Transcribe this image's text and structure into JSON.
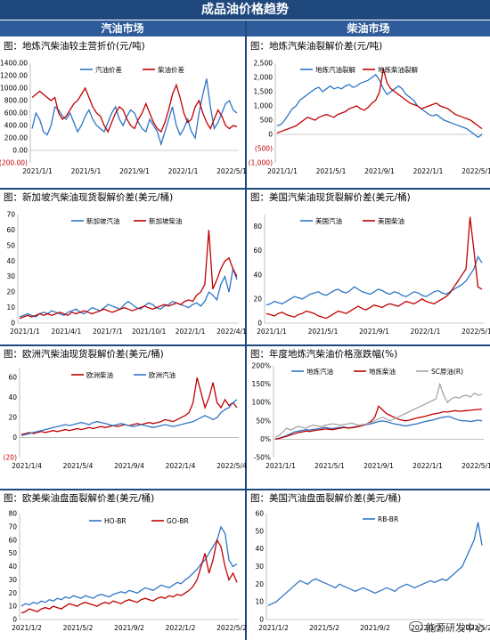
{
  "header": {
    "title": "成品油价格趋势",
    "left_section": "汽油市场",
    "right_section": "柴油市场"
  },
  "watermark": "能源研发中心",
  "chart_data": [
    {
      "type": "line",
      "title": "图：地炼汽柴油较主营折价(元/吨)",
      "yticks": [
        1400,
        1200,
        1000,
        800,
        600,
        400,
        200,
        0,
        -200
      ],
      "ytick_labels": [
        "1400.00",
        "1200.00",
        "1000.00",
        "800.00",
        "600.00",
        "400.00",
        "200.00",
        "0.00",
        "(200.00)"
      ],
      "ylim": [
        -200,
        1400
      ],
      "xticks": [
        "2021/1/1",
        "2021/5/1",
        "2021/9/1",
        "2022/1/1",
        "2022/5/1"
      ],
      "series": [
        {
          "name": "汽油价差",
          "color": "#2e75c6",
          "values": [
            350,
            600,
            500,
            300,
            250,
            400,
            700,
            650,
            550,
            500,
            600,
            450,
            300,
            400,
            550,
            650,
            500,
            400,
            350,
            300,
            450,
            600,
            700,
            500,
            400,
            550,
            650,
            600,
            450,
            350,
            300,
            500,
            400,
            300,
            100,
            300,
            500,
            700,
            400,
            250,
            350,
            500,
            300,
            200,
            600,
            900,
            1150,
            700,
            350,
            450,
            600,
            750,
            800,
            650,
            600
          ]
        },
        {
          "name": "柴油价差",
          "color": "#c00000",
          "values": [
            850,
            900,
            950,
            900,
            850,
            800,
            850,
            600,
            500,
            550,
            650,
            750,
            800,
            900,
            1000,
            850,
            700,
            600,
            550,
            400,
            300,
            450,
            600,
            700,
            650,
            500,
            400,
            350,
            500,
            600,
            750,
            600,
            450,
            350,
            300,
            450,
            650,
            900,
            1050,
            850,
            600,
            450,
            500,
            700,
            800,
            600,
            450,
            350,
            500,
            650,
            550,
            400,
            350,
            400,
            380
          ]
        }
      ]
    },
    {
      "type": "line",
      "title": "图：地炼汽柴油裂解价差(元/吨)",
      "yticks": [
        2500,
        2000,
        1500,
        1000,
        500,
        0,
        -500,
        -1000
      ],
      "ytick_labels": [
        "2,500",
        "2,000",
        "1,500",
        "1,000",
        "500",
        "0",
        "(500)",
        "(1,000)"
      ],
      "ylim": [
        -1000,
        2500
      ],
      "xticks": [
        "2021/1/1",
        "2021/5/1",
        "2021/9/1",
        "2022/1/1",
        "2022/5/1"
      ],
      "series": [
        {
          "name": "地炼汽油裂解",
          "color": "#2e75c6",
          "values": [
            300,
            350,
            500,
            700,
            900,
            1000,
            1200,
            1300,
            1400,
            1500,
            1600,
            1650,
            1500,
            1600,
            1700,
            1600,
            1650,
            1600,
            1700,
            1750,
            1650,
            1700,
            1800,
            1850,
            1900,
            2000,
            2100,
            1900,
            1600,
            1400,
            1500,
            1600,
            1700,
            1600,
            1400,
            1300,
            1200,
            1000,
            900,
            800,
            700,
            650,
            700,
            600,
            500,
            450,
            400,
            350,
            300,
            250,
            200,
            100,
            0,
            -100,
            0
          ]
        },
        {
          "name": "地炼柴油裂解",
          "color": "#c00000",
          "values": [
            50,
            100,
            150,
            200,
            250,
            300,
            400,
            500,
            600,
            550,
            500,
            600,
            650,
            700,
            650,
            600,
            700,
            750,
            800,
            900,
            950,
            1000,
            900,
            850,
            950,
            1100,
            1200,
            1500,
            2300,
            1800,
            1600,
            1500,
            1400,
            1300,
            1200,
            1100,
            1050,
            1000,
            900,
            950,
            1000,
            1050,
            1100,
            1000,
            950,
            900,
            800,
            700,
            650,
            600,
            550,
            500,
            400,
            300,
            200
          ]
        }
      ]
    },
    {
      "type": "line",
      "title": "图：新加坡汽柴油现货裂解价差(美元/桶)",
      "yticks": [
        70,
        60,
        50,
        40,
        30,
        20,
        10,
        0
      ],
      "ylim": [
        0,
        70
      ],
      "xticks": [
        "2021/1/1",
        "2021/4/1",
        "2021/7/1",
        "2021/10/1",
        "2022/1/1",
        "2022/4/1"
      ],
      "series": [
        {
          "name": "新加坡汽油",
          "color": "#2e75c6",
          "values": [
            4,
            5,
            6,
            5,
            4,
            6,
            7,
            6,
            8,
            7,
            6,
            5,
            7,
            8,
            9,
            7,
            6,
            8,
            10,
            9,
            8,
            10,
            12,
            11,
            10,
            9,
            12,
            14,
            12,
            10,
            9,
            11,
            13,
            12,
            10,
            9,
            11,
            12,
            14,
            13,
            12,
            11,
            10,
            12,
            13,
            11,
            14,
            20,
            18,
            15,
            25,
            30,
            20,
            35,
            28
          ]
        },
        {
          "name": "新加坡柴油",
          "color": "#c00000",
          "values": [
            3,
            4,
            5,
            4,
            5,
            6,
            5,
            6,
            5,
            6,
            7,
            6,
            5,
            7,
            6,
            7,
            8,
            7,
            6,
            7,
            8,
            9,
            8,
            7,
            8,
            9,
            10,
            9,
            8,
            9,
            10,
            11,
            10,
            9,
            10,
            11,
            12,
            11,
            12,
            13,
            12,
            14,
            15,
            14,
            18,
            20,
            25,
            60,
            22,
            28,
            35,
            40,
            42,
            35,
            30
          ]
        }
      ]
    },
    {
      "type": "line",
      "title": "图：美国汽柴油现货裂解价差(美元/桶)",
      "yticks": [
        80,
        60,
        40,
        20,
        0
      ],
      "ylim": [
        0,
        90
      ],
      "xticks": [
        "2021/1/1",
        "2021/5/1",
        "2021/9/1",
        "2022/1/1",
        "2022/5/1"
      ],
      "series": [
        {
          "name": "美国汽油",
          "color": "#2e75c6",
          "values": [
            15,
            16,
            18,
            17,
            16,
            18,
            20,
            22,
            21,
            20,
            22,
            24,
            25,
            26,
            24,
            23,
            25,
            27,
            28,
            26,
            25,
            27,
            30,
            28,
            26,
            25,
            24,
            26,
            28,
            27,
            25,
            24,
            26,
            25,
            23,
            22,
            24,
            26,
            25,
            23,
            22,
            24,
            26,
            27,
            25,
            24,
            26,
            28,
            30,
            32,
            35,
            40,
            45,
            55,
            50
          ]
        },
        {
          "name": "美国柴油",
          "color": "#c00000",
          "values": [
            8,
            7,
            6,
            8,
            9,
            7,
            6,
            5,
            7,
            8,
            10,
            9,
            8,
            6,
            5,
            4,
            6,
            8,
            10,
            9,
            8,
            10,
            12,
            14,
            12,
            11,
            13,
            15,
            14,
            13,
            15,
            16,
            15,
            14,
            16,
            18,
            17,
            16,
            18,
            20,
            18,
            17,
            16,
            18,
            20,
            22,
            25,
            30,
            35,
            40,
            45,
            88,
            60,
            30,
            28
          ]
        }
      ]
    },
    {
      "type": "line",
      "title": "图：欧洲汽柴油现货裂解价差(美元/桶)",
      "yticks": [
        60,
        40,
        20,
        0,
        -20
      ],
      "ytick_labels": [
        "60",
        "40",
        "20",
        "0",
        "(20)"
      ],
      "ylim": [
        -20,
        70
      ],
      "xticks": [
        "2021/1/4",
        "2021/5/4",
        "2021/9/4",
        "2022/1/4",
        "2022/5/4"
      ],
      "series": [
        {
          "name": "欧洲柴油",
          "color": "#c00000",
          "values": [
            3,
            4,
            5,
            4,
            5,
            6,
            5,
            6,
            7,
            6,
            7,
            8,
            7,
            8,
            9,
            8,
            9,
            10,
            9,
            10,
            11,
            10,
            11,
            12,
            11,
            12,
            13,
            12,
            13,
            14,
            13,
            14,
            15,
            14,
            15,
            16,
            18,
            17,
            16,
            18,
            20,
            22,
            25,
            35,
            60,
            45,
            30,
            40,
            55,
            35,
            30,
            38,
            32,
            35,
            30
          ]
        },
        {
          "name": "欧洲汽油",
          "color": "#2e75c6",
          "values": [
            2,
            3,
            4,
            5,
            6,
            7,
            8,
            9,
            10,
            11,
            12,
            13,
            12,
            13,
            14,
            15,
            14,
            13,
            15,
            16,
            15,
            14,
            13,
            12,
            13,
            14,
            13,
            12,
            11,
            12,
            13,
            12,
            11,
            10,
            11,
            12,
            13,
            12,
            11,
            12,
            13,
            14,
            15,
            16,
            18,
            20,
            22,
            20,
            18,
            20,
            25,
            28,
            30,
            35,
            38
          ]
        }
      ]
    },
    {
      "type": "line",
      "title": "图：年度地炼汽柴油价格涨跌幅(%)",
      "yticks": [
        200,
        150,
        100,
        50,
        0,
        -50
      ],
      "ytick_labels": [
        "200%",
        "150%",
        "100%",
        "50%",
        "0%",
        "-50%"
      ],
      "ylim": [
        -50,
        200
      ],
      "xticks": [
        "2021/1/1",
        "2021/5/1",
        "2021/9/1",
        "2022/1/1",
        "2022/5/1"
      ],
      "series": [
        {
          "name": "地炼汽油",
          "color": "#2e75c6",
          "values": [
            0,
            3,
            6,
            10,
            15,
            20,
            22,
            24,
            26,
            25,
            27,
            28,
            30,
            32,
            30,
            29,
            31,
            32,
            33,
            31,
            32,
            34,
            36,
            38,
            40,
            42,
            45,
            48,
            50,
            48,
            45,
            42,
            40,
            38,
            36,
            38,
            40,
            42,
            45,
            48,
            50,
            52,
            55,
            58,
            60,
            62,
            60,
            55,
            52,
            50,
            50,
            48,
            50,
            52,
            50
          ]
        },
        {
          "name": "地炼柴油",
          "color": "#c00000",
          "values": [
            0,
            2,
            5,
            8,
            12,
            15,
            18,
            20,
            22,
            21,
            23,
            25,
            26,
            28,
            27,
            26,
            28,
            30,
            32,
            30,
            31,
            33,
            35,
            38,
            42,
            48,
            60,
            90,
            80,
            70,
            65,
            60,
            55,
            52,
            50,
            52,
            55,
            58,
            60,
            62,
            65,
            68,
            70,
            72,
            75,
            74,
            76,
            78,
            76,
            77,
            78,
            79,
            80,
            81,
            82
          ]
        },
        {
          "name": "SC原油(R)",
          "color": "#a6a6a6",
          "values": [
            5,
            10,
            20,
            30,
            25,
            30,
            35,
            32,
            30,
            35,
            38,
            36,
            34,
            38,
            40,
            42,
            40,
            38,
            40,
            42,
            44,
            40,
            38,
            40,
            42,
            45,
            50,
            55,
            60,
            55,
            50,
            55,
            60,
            65,
            70,
            75,
            80,
            85,
            90,
            95,
            100,
            105,
            110,
            150,
            120,
            100,
            110,
            115,
            112,
            118,
            120,
            115,
            125,
            120,
            122
          ]
        }
      ]
    },
    {
      "type": "line",
      "title": "图：欧美柴油盘面裂解价差(美元/桶)",
      "yticks": [
        80,
        70,
        60,
        50,
        40,
        30,
        20,
        10,
        0
      ],
      "ylim": [
        0,
        80
      ],
      "xticks": [
        "2021/1/2",
        "2021/5/2",
        "2021/9/2",
        "2022/1/2",
        "2022/5/2"
      ],
      "series": [
        {
          "name": "HO-BR",
          "color": "#2e75c6",
          "values": [
            10,
            12,
            11,
            13,
            12,
            14,
            13,
            15,
            14,
            16,
            15,
            17,
            16,
            18,
            17,
            16,
            18,
            17,
            16,
            18,
            19,
            18,
            17,
            19,
            20,
            21,
            20,
            22,
            21,
            20,
            22,
            24,
            23,
            22,
            24,
            26,
            25,
            24,
            26,
            28,
            27,
            30,
            32,
            35,
            38,
            42,
            45,
            50,
            55,
            60,
            70,
            65,
            45,
            40,
            42
          ]
        },
        {
          "name": "GO-BR",
          "color": "#c00000",
          "values": [
            5,
            6,
            8,
            7,
            6,
            8,
            9,
            8,
            10,
            9,
            8,
            10,
            12,
            11,
            10,
            12,
            13,
            12,
            11,
            10,
            12,
            13,
            12,
            14,
            13,
            12,
            14,
            15,
            14,
            13,
            15,
            16,
            15,
            14,
            16,
            17,
            16,
            18,
            17,
            19,
            18,
            20,
            22,
            25,
            30,
            40,
            50,
            35,
            45,
            60,
            55,
            40,
            30,
            35,
            28
          ]
        }
      ]
    },
    {
      "type": "line",
      "title": "图：美国汽油盘面裂解价差(美元/桶)",
      "yticks": [
        60,
        50,
        40,
        30,
        20,
        10,
        0
      ],
      "ylim": [
        0,
        60
      ],
      "xticks": [
        "2021/1/2",
        "2021/5/2",
        "2021/9/2",
        "2022/1/2",
        "2022/5/2"
      ],
      "series": [
        {
          "name": "RB-BR",
          "color": "#2e75c6",
          "values": [
            8,
            9,
            10,
            12,
            14,
            16,
            18,
            20,
            22,
            21,
            20,
            22,
            23,
            22,
            21,
            20,
            19,
            18,
            20,
            19,
            18,
            17,
            16,
            17,
            18,
            17,
            16,
            15,
            16,
            17,
            18,
            17,
            16,
            18,
            19,
            20,
            19,
            18,
            19,
            20,
            21,
            22,
            21,
            22,
            23,
            22,
            24,
            26,
            28,
            30,
            35,
            40,
            45,
            55,
            42
          ]
        }
      ]
    }
  ]
}
